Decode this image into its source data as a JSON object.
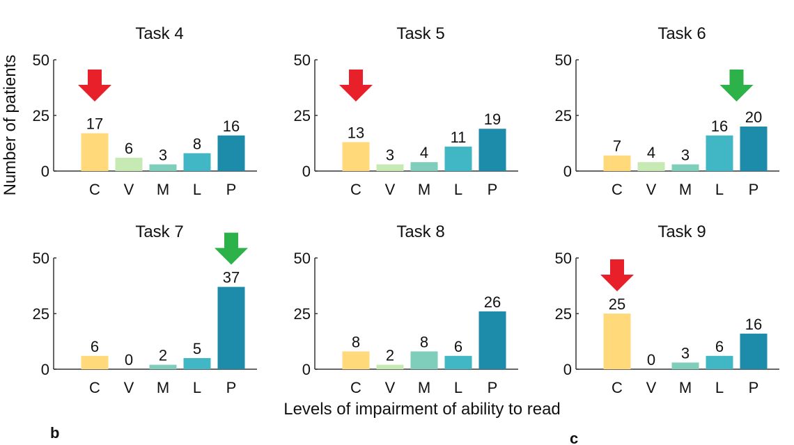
{
  "chart_data": {
    "type": "bar",
    "categories": [
      "C",
      "V",
      "M",
      "L",
      "P"
    ],
    "colors": [
      "#FFD97A",
      "#C7E9B4",
      "#7FCDBB",
      "#41B6C4",
      "#1D8BAA"
    ],
    "ylabel": "Number of patients",
    "xlabel": "Levels of impairment of ability to read",
    "ylim": [
      0,
      50
    ],
    "yticks": [
      0,
      25,
      50
    ],
    "panels": [
      {
        "title": "Task 4",
        "values": [
          17,
          6,
          3,
          8,
          16
        ],
        "arrow": {
          "color": "#E8202A",
          "at": 0
        }
      },
      {
        "title": "Task 5",
        "values": [
          13,
          3,
          4,
          11,
          19
        ],
        "arrow": {
          "color": "#E8202A",
          "at": 0
        }
      },
      {
        "title": "Task 6",
        "values": [
          7,
          4,
          3,
          16,
          20
        ],
        "arrow": {
          "color": "#2DB24A",
          "at": 3.5
        }
      },
      {
        "title": "Task 7",
        "values": [
          6,
          0,
          2,
          5,
          37
        ],
        "arrow": {
          "color": "#2DB24A",
          "at": 4
        }
      },
      {
        "title": "Task 8",
        "values": [
          8,
          2,
          8,
          6,
          26
        ],
        "arrow": null
      },
      {
        "title": "Task 9",
        "values": [
          25,
          0,
          3,
          6,
          16
        ],
        "arrow": {
          "color": "#E8202A",
          "at": 0
        }
      }
    ]
  },
  "panel_labels": [
    "b",
    "c"
  ]
}
